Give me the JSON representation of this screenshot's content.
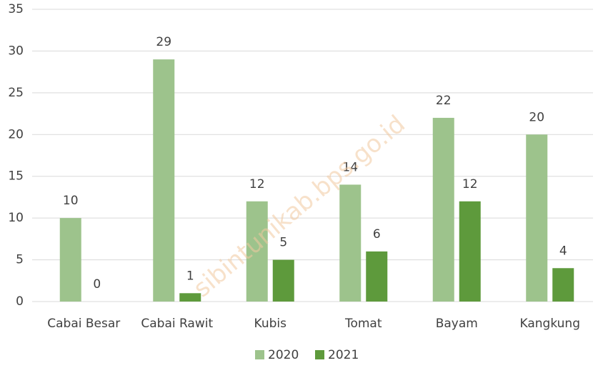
{
  "chart_data": {
    "type": "bar",
    "categories": [
      "Cabai Besar",
      "Cabai Rawit",
      "Kubis",
      "Tomat",
      "Bayam",
      "Kangkung"
    ],
    "series": [
      {
        "name": "2020",
        "color": "#9dc38c",
        "values": [
          10,
          29,
          12,
          14,
          22,
          20
        ]
      },
      {
        "name": "2021",
        "color": "#5e9a3c",
        "values": [
          0,
          1,
          5,
          6,
          12,
          4
        ]
      }
    ],
    "ylim": [
      0,
      35
    ],
    "yticks": [
      0,
      5,
      10,
      15,
      20,
      25,
      30,
      35
    ],
    "grid": true,
    "legend": "bottom",
    "watermark": "sibintunikab.bps.go.id"
  }
}
